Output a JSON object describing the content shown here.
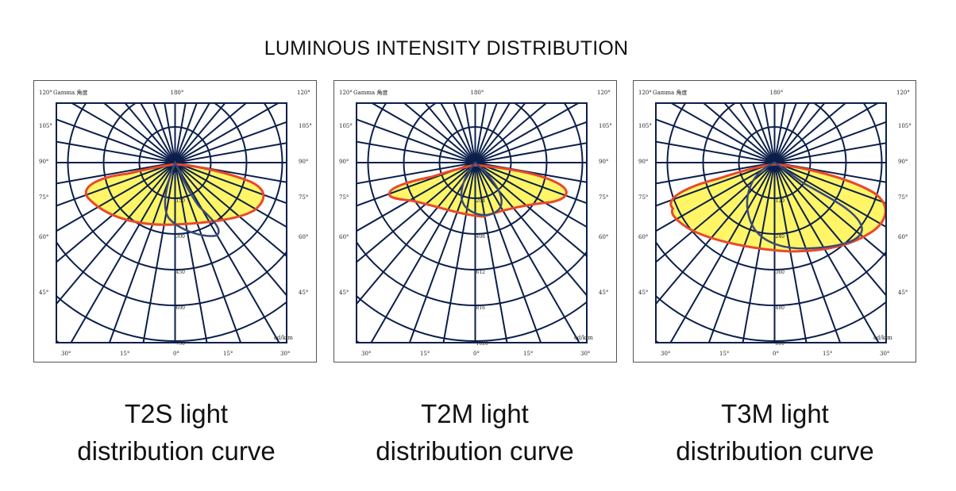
{
  "page": {
    "title": "LUMINOUS INTENSITY DISTRIBUTION"
  },
  "colors": {
    "grid": "#0b1f4a",
    "fill": "#fff566",
    "outline": "#e8492b",
    "curve": "#3a4a78"
  },
  "chart_data": [
    {
      "type": "polar",
      "gamma_label": "Gamma 角度",
      "unit": "cd/klm",
      "top_angle": "180°",
      "corner_angles": [
        "120°",
        "120°"
      ],
      "side_angles": [
        "105°",
        "90°",
        "75°",
        "60°",
        "45°"
      ],
      "bottom_angles": [
        "30°",
        "15°",
        "0°",
        "15°",
        "30°"
      ],
      "ring_labels": [
        "150",
        "300",
        "450",
        "600",
        "750"
      ],
      "caption": [
        "T2S light",
        "distribution curve"
      ]
    },
    {
      "type": "polar",
      "gamma_label": "Gamma 角度",
      "unit": "cd/klm",
      "top_angle": "180°",
      "corner_angles": [
        "120°",
        "120°"
      ],
      "side_angles": [
        "105°",
        "90°",
        "75°",
        "60°",
        "45°"
      ],
      "bottom_angles": [
        "30°",
        "15°",
        "0°",
        "15°",
        "30°"
      ],
      "ring_labels": [
        "204",
        "408",
        "612",
        "816",
        "1020"
      ],
      "caption": [
        "T2M light",
        "distribution curve"
      ]
    },
    {
      "type": "polar",
      "gamma_label": "Gamma 角度",
      "unit": "cd/klm",
      "top_angle": "180°",
      "corner_angles": [
        "120°",
        "120°"
      ],
      "side_angles": [
        "105°",
        "90°",
        "75°",
        "60°",
        "45°"
      ],
      "bottom_angles": [
        "30°",
        "15°",
        "0°",
        "15°",
        "30°"
      ],
      "ring_labels": [
        "120",
        "240",
        "360",
        "480",
        "600"
      ],
      "caption": [
        "T3M light",
        "distribution curve"
      ]
    }
  ]
}
